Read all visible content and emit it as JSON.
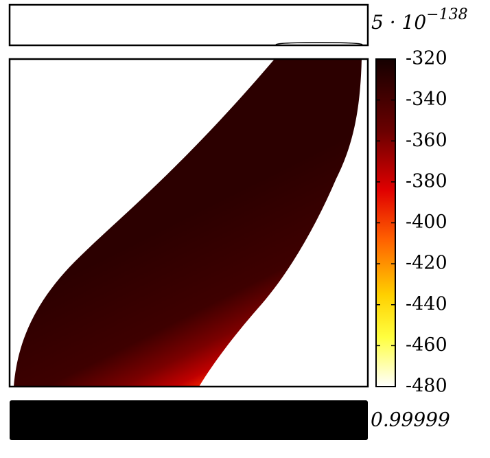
{
  "chart_data": {
    "type": "heatmap",
    "top_label": "5 · 10",
    "top_label_exponent": "−138",
    "bottom_label": "0.99999",
    "colorbar_lim": [
      -480,
      -320
    ],
    "colorbar_ticks": [
      -320,
      -340,
      -360,
      -380,
      -400,
      -420,
      -440,
      -460,
      -480
    ]
  }
}
